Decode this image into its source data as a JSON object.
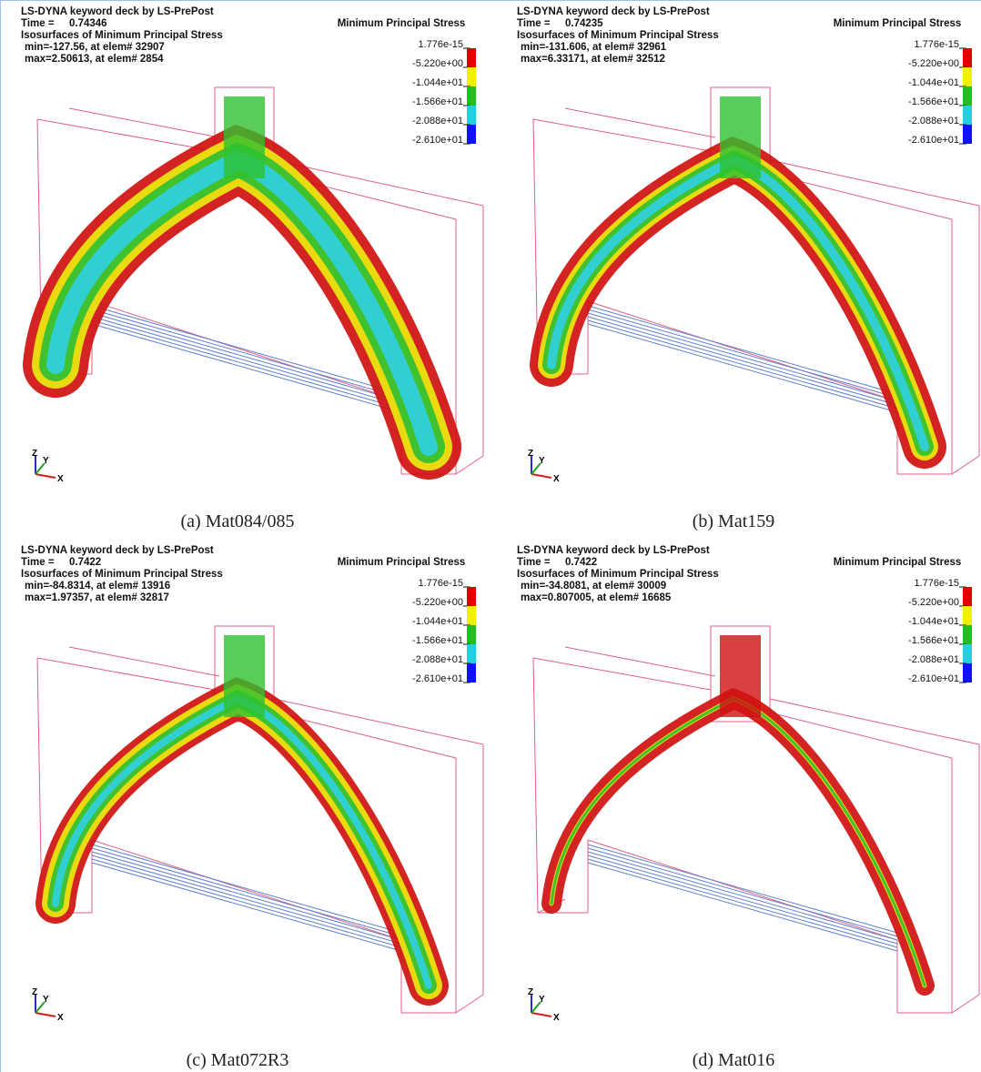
{
  "panels": [
    {
      "header": {
        "title": "LS-DYNA keyword deck by LS-PrePost",
        "time_label": "Time =",
        "time": "0.74346",
        "subtitle": "Isosurfaces of Minimum Principal Stress",
        "min": "min=-127.56, at elem# 32907",
        "max": "max=2.50613, at elem# 2854"
      },
      "legend": {
        "title": "Minimum Principal Stress",
        "labels": [
          "1.776e-15",
          "-5.220e+00",
          "-1.044e+01",
          "-1.566e+01",
          "-2.088e+01",
          "-2.610e+01"
        ]
      },
      "axes": [
        "Z",
        "Y",
        "X"
      ],
      "caption": "(a) Mat084/085"
    },
    {
      "header": {
        "title": "LS-DYNA keyword deck by LS-PrePost",
        "time_label": "Time =",
        "time": "0.74235",
        "subtitle": "Isosurfaces of Minimum Principal Stress",
        "min": "min=-131.606, at elem# 32961",
        "max": "max=6.33171, at elem# 32512"
      },
      "legend": {
        "title": "Minimum Principal Stress",
        "labels": [
          "1.776e-15",
          "-5.220e+00",
          "-1.044e+01",
          "-1.566e+01",
          "-2.088e+01",
          "-2.610e+01"
        ]
      },
      "axes": [
        "Z",
        "Y",
        "X"
      ],
      "caption": "(b) Mat159"
    },
    {
      "header": {
        "title": "LS-DYNA keyword deck by LS-PrePost",
        "time_label": "Time =",
        "time": "0.7422",
        "subtitle": "Isosurfaces of Minimum Principal Stress",
        "min": "min=-84.8314, at elem# 13916",
        "max": "max=1.97357, at elem# 32817"
      },
      "legend": {
        "title": "Minimum Principal Stress",
        "labels": [
          "1.776e-15",
          "-5.220e+00",
          "-1.044e+01",
          "-1.566e+01",
          "-2.088e+01",
          "-2.610e+01"
        ]
      },
      "axes": [
        "Z",
        "Y",
        "X"
      ],
      "caption": "(c) Mat072R3"
    },
    {
      "header": {
        "title": "LS-DYNA keyword deck by LS-PrePost",
        "time_label": "Time =",
        "time": "0.7422",
        "subtitle": "Isosurfaces of Minimum Principal Stress",
        "min": "min=-34.8081, at elem# 30009",
        "max": "max=0.807005, at elem# 16685"
      },
      "legend": {
        "title": "Minimum Principal Stress",
        "labels": [
          "1.776e-15",
          "-5.220e+00",
          "-1.044e+01",
          "-1.566e+01",
          "-2.088e+01",
          "-2.610e+01"
        ]
      },
      "axes": [
        "Z",
        "Y",
        "X"
      ],
      "caption": "(d) Mat016"
    }
  ]
}
